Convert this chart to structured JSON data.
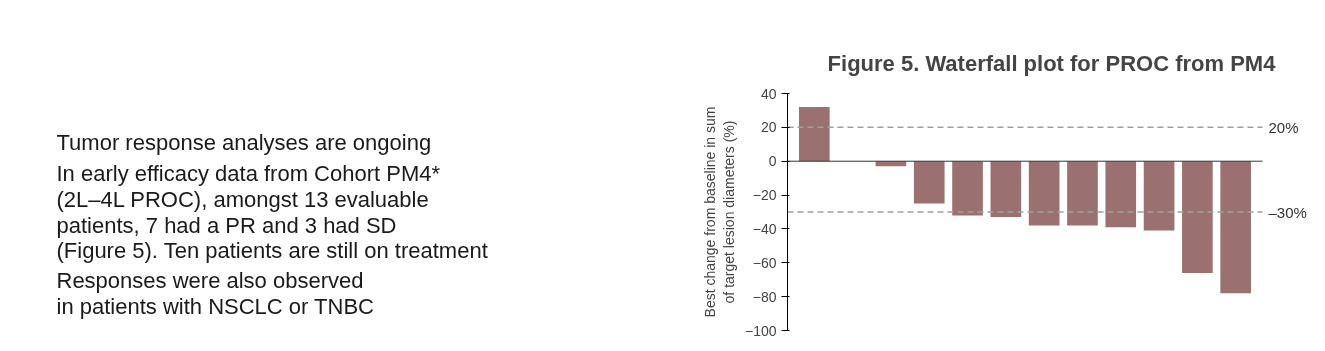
{
  "chart_data": {
    "type": "bar",
    "title": "Figure 5. Waterfall plot for PROC from PM4",
    "ylabel": "Best change from baseline in sum\nof target lesion diameters (%)",
    "categories": [
      null,
      null,
      null,
      null,
      null,
      null,
      null,
      null,
      null,
      null,
      null,
      null
    ],
    "values": [
      32,
      null,
      -3,
      -25,
      -32,
      -33,
      -38,
      -38,
      -39,
      -41,
      -66,
      -78
    ],
    "color": "#9a7070",
    "ylim": [
      -100,
      40
    ],
    "yticks": [
      -100,
      -80,
      -60,
      -40,
      -20,
      0,
      20,
      40
    ],
    "grid": false,
    "legend": false,
    "ref_lines": [
      {
        "axis": "y",
        "value": 20,
        "label": "20%",
        "color": "#a0a0a0",
        "line_style": "dashed"
      },
      {
        "axis": "y",
        "value": -30,
        "label": "–30%",
        "color": "#a0a0a0",
        "line_style": "dashed"
      }
    ],
    "annotations": [
      "Tumor response analyses are ongoing",
      "In early efficacy data from Cohort PM4*\n(2L–4L PROC), amongst 13 evaluable\npatients, 7 had a PR and 3 had SD\n(Figure 5). Ten patients are still on treatment",
      "Responses were also observed\nin patients with NSCLC or TNBC"
    ]
  }
}
